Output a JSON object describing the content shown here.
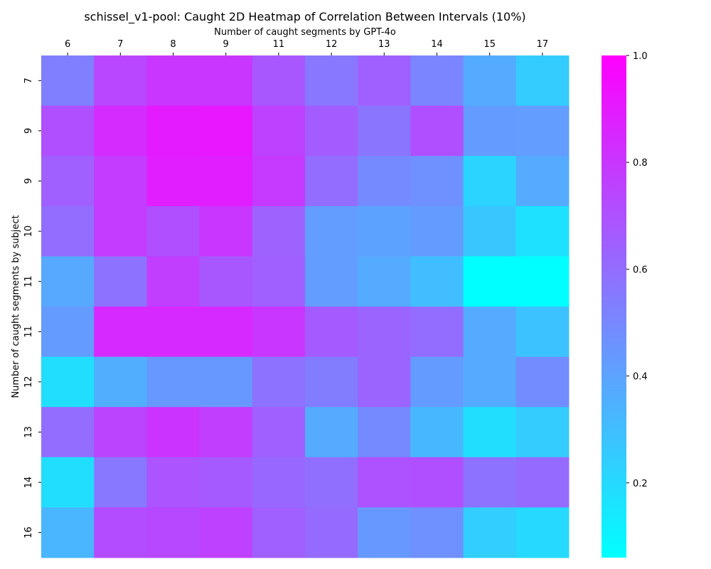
{
  "chart_data": {
    "type": "heatmap",
    "title": "schissel_v1-pool: Caught 2D Heatmap of Correlation Between Intervals (10%)",
    "xlabel": "Number of caught segments by GPT-4o",
    "ylabel": "Number of caught segments by subject",
    "x_categories": [
      "6",
      "7",
      "8",
      "9",
      "11",
      "12",
      "13",
      "14",
      "15",
      "17"
    ],
    "y_categories": [
      "7",
      "9",
      "9",
      "10",
      "11",
      "11",
      "12",
      "13",
      "14",
      "16"
    ],
    "values": [
      [
        0.53,
        0.74,
        0.8,
        0.8,
        0.68,
        0.56,
        0.65,
        0.51,
        0.37,
        0.25
      ],
      [
        0.71,
        0.84,
        0.9,
        0.91,
        0.76,
        0.66,
        0.57,
        0.71,
        0.43,
        0.42
      ],
      [
        0.65,
        0.78,
        0.89,
        0.89,
        0.79,
        0.6,
        0.49,
        0.47,
        0.22,
        0.37
      ],
      [
        0.6,
        0.78,
        0.71,
        0.8,
        0.64,
        0.42,
        0.4,
        0.43,
        0.27,
        0.17
      ],
      [
        0.38,
        0.58,
        0.77,
        0.68,
        0.65,
        0.42,
        0.37,
        0.3,
        0.06,
        0.06
      ],
      [
        0.43,
        0.85,
        0.85,
        0.85,
        0.8,
        0.67,
        0.63,
        0.6,
        0.37,
        0.28
      ],
      [
        0.18,
        0.36,
        0.44,
        0.44,
        0.58,
        0.54,
        0.63,
        0.43,
        0.37,
        0.48
      ],
      [
        0.6,
        0.75,
        0.81,
        0.77,
        0.65,
        0.37,
        0.49,
        0.32,
        0.18,
        0.25
      ],
      [
        0.18,
        0.56,
        0.69,
        0.67,
        0.62,
        0.59,
        0.7,
        0.71,
        0.58,
        0.61
      ],
      [
        0.33,
        0.72,
        0.73,
        0.76,
        0.65,
        0.61,
        0.44,
        0.47,
        0.24,
        0.2
      ]
    ],
    "colormap": "cool",
    "color_low": "#00ffff",
    "color_high": "#ff00ff",
    "vmin": 0.06,
    "vmax": 1.0,
    "colorbar_ticks": [
      "0.2",
      "0.4",
      "0.6",
      "0.8",
      "1.0"
    ],
    "x_axis_position": "top",
    "grid": false,
    "legend": "colorbar-right"
  }
}
